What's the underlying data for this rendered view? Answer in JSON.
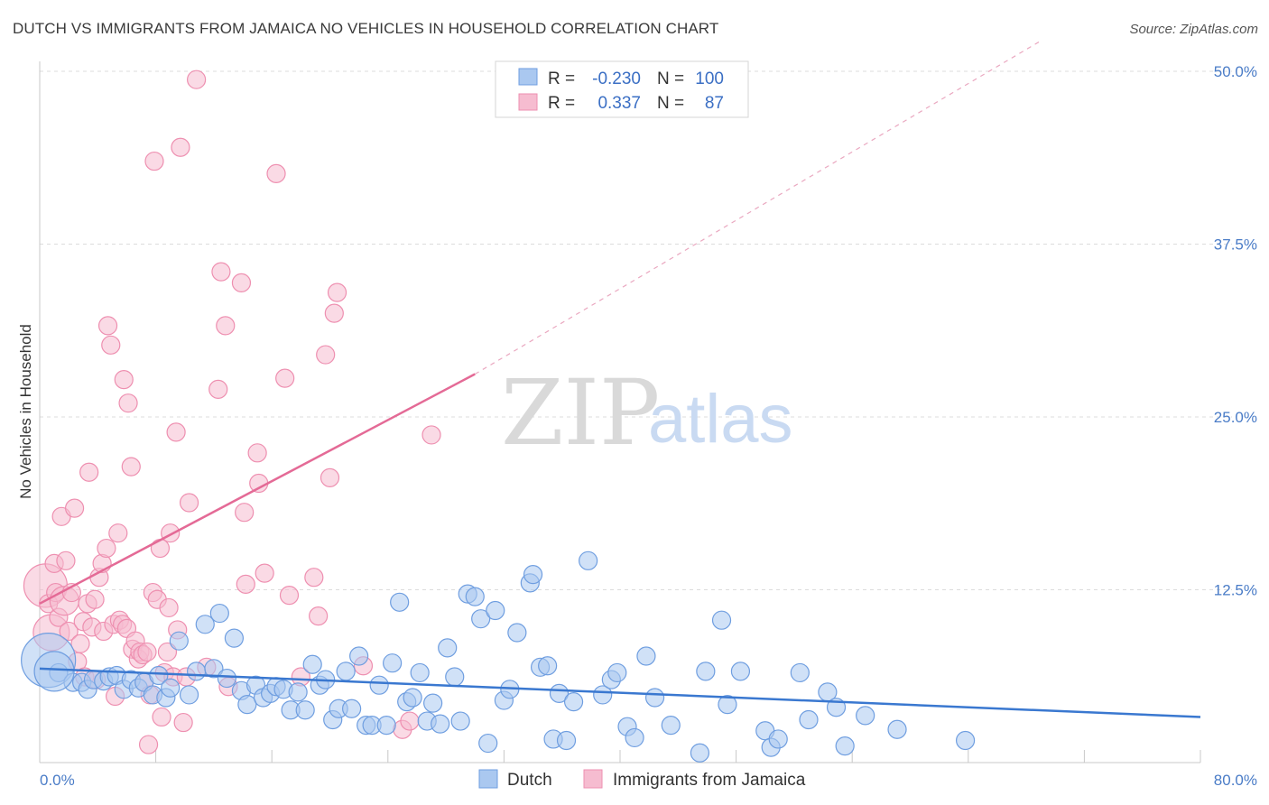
{
  "title": "DUTCH VS IMMIGRANTS FROM JAMAICA NO VEHICLES IN HOUSEHOLD CORRELATION CHART",
  "source": "Source: ZipAtlas.com",
  "watermark": {
    "part1": "ZIP",
    "part2": "atlas"
  },
  "colors": {
    "dutch_fill": "#aac8f0",
    "dutch_stroke": "#6f9ee0",
    "dutch_line": "#3a78d0",
    "jam_fill": "#f6bcd0",
    "jam_stroke": "#ee8fb0",
    "jam_line": "#e46a96",
    "grid": "#dcdcdc",
    "tick_text": "#4a7cc7"
  },
  "legend": {
    "rows": [
      {
        "r_label": "R =",
        "r_value": "-0.230",
        "n_label": "N =",
        "n_value": "100"
      },
      {
        "r_label": "R =",
        "r_value": "0.337",
        "n_label": "N =",
        "n_value": "87"
      }
    ]
  },
  "chart_data": {
    "type": "scatter",
    "ylabel": "No Vehicles in Household",
    "xlim": [
      0,
      80
    ],
    "ylim": [
      0,
      50
    ],
    "x_tick_labels": {
      "min": "0.0%",
      "max": "80.0%"
    },
    "y_ticks": [
      {
        "value": 12.5,
        "label": "12.5%"
      },
      {
        "value": 25.0,
        "label": "25.0%"
      },
      {
        "value": 37.5,
        "label": "37.5%"
      },
      {
        "value": 50.0,
        "label": "50.0%"
      }
    ],
    "grid": true,
    "legend_position": "top-center",
    "series": [
      {
        "name": "Dutch",
        "r": -0.23,
        "n": 100,
        "trend": {
          "x0": 0,
          "y0": 6.8,
          "x1": 80,
          "y1": 3.3,
          "dashed_from": null
        },
        "points": [
          [
            0.6,
            7.4
          ],
          [
            1.3,
            6.5
          ],
          [
            2.3,
            5.8
          ],
          [
            2.9,
            5.8
          ],
          [
            3.3,
            5.3
          ],
          [
            3.7,
            6.0
          ],
          [
            4.4,
            5.9
          ],
          [
            4.8,
            6.2
          ],
          [
            5.3,
            6.3
          ],
          [
            5.8,
            5.3
          ],
          [
            6.3,
            6.0
          ],
          [
            6.8,
            5.4
          ],
          [
            7.2,
            5.8
          ],
          [
            7.8,
            4.9
          ],
          [
            8.2,
            6.3
          ],
          [
            8.7,
            4.7
          ],
          [
            9.0,
            5.4
          ],
          [
            9.6,
            8.8
          ],
          [
            10.3,
            4.9
          ],
          [
            10.8,
            6.6
          ],
          [
            11.4,
            10.0
          ],
          [
            12.0,
            6.8
          ],
          [
            12.4,
            10.8
          ],
          [
            12.9,
            6.1
          ],
          [
            13.4,
            9.0
          ],
          [
            13.9,
            5.2
          ],
          [
            14.3,
            4.2
          ],
          [
            14.9,
            5.6
          ],
          [
            15.4,
            4.7
          ],
          [
            15.9,
            5.0
          ],
          [
            16.3,
            5.5
          ],
          [
            16.8,
            5.3
          ],
          [
            17.3,
            3.8
          ],
          [
            17.8,
            5.1
          ],
          [
            18.3,
            3.8
          ],
          [
            18.8,
            7.1
          ],
          [
            19.3,
            5.6
          ],
          [
            19.7,
            6.0
          ],
          [
            20.2,
            3.1
          ],
          [
            20.6,
            3.9
          ],
          [
            21.1,
            6.6
          ],
          [
            21.5,
            3.9
          ],
          [
            22.0,
            7.7
          ],
          [
            22.5,
            2.7
          ],
          [
            22.9,
            2.7
          ],
          [
            23.4,
            5.6
          ],
          [
            23.9,
            2.7
          ],
          [
            24.3,
            7.2
          ],
          [
            24.8,
            11.6
          ],
          [
            25.3,
            4.4
          ],
          [
            25.7,
            4.7
          ],
          [
            26.2,
            6.5
          ],
          [
            26.7,
            3.0
          ],
          [
            27.1,
            4.3
          ],
          [
            27.6,
            2.8
          ],
          [
            28.1,
            8.3
          ],
          [
            28.6,
            6.2
          ],
          [
            29.0,
            3.0
          ],
          [
            29.5,
            12.2
          ],
          [
            30.0,
            12.0
          ],
          [
            30.4,
            10.4
          ],
          [
            30.9,
            1.4
          ],
          [
            31.4,
            11.0
          ],
          [
            32.0,
            4.5
          ],
          [
            32.4,
            5.3
          ],
          [
            32.9,
            9.4
          ],
          [
            33.8,
            13.0
          ],
          [
            34.0,
            13.6
          ],
          [
            34.5,
            6.9
          ],
          [
            35.0,
            7.0
          ],
          [
            35.4,
            1.7
          ],
          [
            35.8,
            5.0
          ],
          [
            36.3,
            1.6
          ],
          [
            36.8,
            4.4
          ],
          [
            37.8,
            14.6
          ],
          [
            38.8,
            4.9
          ],
          [
            39.4,
            6.0
          ],
          [
            39.8,
            6.5
          ],
          [
            40.5,
            2.6
          ],
          [
            41.0,
            1.8
          ],
          [
            41.8,
            7.7
          ],
          [
            42.4,
            4.7
          ],
          [
            43.5,
            2.7
          ],
          [
            45.5,
            0.7
          ],
          [
            45.9,
            6.6
          ],
          [
            47.0,
            10.3
          ],
          [
            47.4,
            4.2
          ],
          [
            48.3,
            6.6
          ],
          [
            50.0,
            2.3
          ],
          [
            50.4,
            1.1
          ],
          [
            50.9,
            1.7
          ],
          [
            52.4,
            6.5
          ],
          [
            53.0,
            3.1
          ],
          [
            54.3,
            5.1
          ],
          [
            54.9,
            4.0
          ],
          [
            55.5,
            1.2
          ],
          [
            56.9,
            3.4
          ],
          [
            59.1,
            2.4
          ],
          [
            63.8,
            1.6
          ],
          [
            1.0,
            6.6
          ]
        ],
        "point_sizes": {
          "0": 30,
          "99": 22
        }
      },
      {
        "name": "Immigrants from Jamaica",
        "r": 0.337,
        "n": 87,
        "trend": {
          "x0": 0,
          "y0": 11.5,
          "x1": 30,
          "y1": 28.1,
          "dashed_to_x": 80,
          "dashed_to_y": 59.0
        },
        "points": [
          [
            0.4,
            12.8
          ],
          [
            0.6,
            11.5
          ],
          [
            0.8,
            9.4
          ],
          [
            1.0,
            14.4
          ],
          [
            1.1,
            12.3
          ],
          [
            1.3,
            10.5
          ],
          [
            1.5,
            17.8
          ],
          [
            1.7,
            11.7
          ],
          [
            1.8,
            14.6
          ],
          [
            2.0,
            9.5
          ],
          [
            2.2,
            12.3
          ],
          [
            2.4,
            18.4
          ],
          [
            2.6,
            7.3
          ],
          [
            2.8,
            8.6
          ],
          [
            3.0,
            10.2
          ],
          [
            3.1,
            6.2
          ],
          [
            3.3,
            11.5
          ],
          [
            3.4,
            21.0
          ],
          [
            3.6,
            9.8
          ],
          [
            3.8,
            11.8
          ],
          [
            3.9,
            6.0
          ],
          [
            4.1,
            13.4
          ],
          [
            4.3,
            14.4
          ],
          [
            4.4,
            9.5
          ],
          [
            4.6,
            15.5
          ],
          [
            4.7,
            31.6
          ],
          [
            4.9,
            30.2
          ],
          [
            5.1,
            10.0
          ],
          [
            5.2,
            4.8
          ],
          [
            5.4,
            16.6
          ],
          [
            5.5,
            10.3
          ],
          [
            5.7,
            10.0
          ],
          [
            5.8,
            27.7
          ],
          [
            6.0,
            9.7
          ],
          [
            6.1,
            26.0
          ],
          [
            6.3,
            21.4
          ],
          [
            6.4,
            8.2
          ],
          [
            6.6,
            8.8
          ],
          [
            6.8,
            7.5
          ],
          [
            6.9,
            8.0
          ],
          [
            7.1,
            7.8
          ],
          [
            7.2,
            5.8
          ],
          [
            7.4,
            8.0
          ],
          [
            7.6,
            4.9
          ],
          [
            7.8,
            12.3
          ],
          [
            7.9,
            43.5
          ],
          [
            8.1,
            11.8
          ],
          [
            8.3,
            15.5
          ],
          [
            8.4,
            3.3
          ],
          [
            8.6,
            6.5
          ],
          [
            8.8,
            8.0
          ],
          [
            8.9,
            11.2
          ],
          [
            9.0,
            16.6
          ],
          [
            9.2,
            6.2
          ],
          [
            9.4,
            23.9
          ],
          [
            9.5,
            9.6
          ],
          [
            9.7,
            44.5
          ],
          [
            9.9,
            2.9
          ],
          [
            10.1,
            6.2
          ],
          [
            10.3,
            18.8
          ],
          [
            10.8,
            49.4
          ],
          [
            11.5,
            6.9
          ],
          [
            12.3,
            27.0
          ],
          [
            12.5,
            35.5
          ],
          [
            12.8,
            31.6
          ],
          [
            13.9,
            34.7
          ],
          [
            14.1,
            18.1
          ],
          [
            14.2,
            12.9
          ],
          [
            15.0,
            22.4
          ],
          [
            15.1,
            20.2
          ],
          [
            15.5,
            13.7
          ],
          [
            16.3,
            42.6
          ],
          [
            16.9,
            27.8
          ],
          [
            17.2,
            12.1
          ],
          [
            18.0,
            6.2
          ],
          [
            18.9,
            13.4
          ],
          [
            19.2,
            10.6
          ],
          [
            19.7,
            29.5
          ],
          [
            20.0,
            20.6
          ],
          [
            20.3,
            32.5
          ],
          [
            20.5,
            34.0
          ],
          [
            22.3,
            7.0
          ],
          [
            25.0,
            2.4
          ],
          [
            25.5,
            3.0
          ],
          [
            27.0,
            23.7
          ],
          [
            7.5,
            1.3
          ],
          [
            13.0,
            5.5
          ]
        ],
        "point_sizes": {
          "0": 24,
          "2": 20,
          "7": 16
        }
      }
    ]
  },
  "bottom_legend": {
    "dutch": "Dutch",
    "jamaica": "Immigrants from Jamaica"
  }
}
